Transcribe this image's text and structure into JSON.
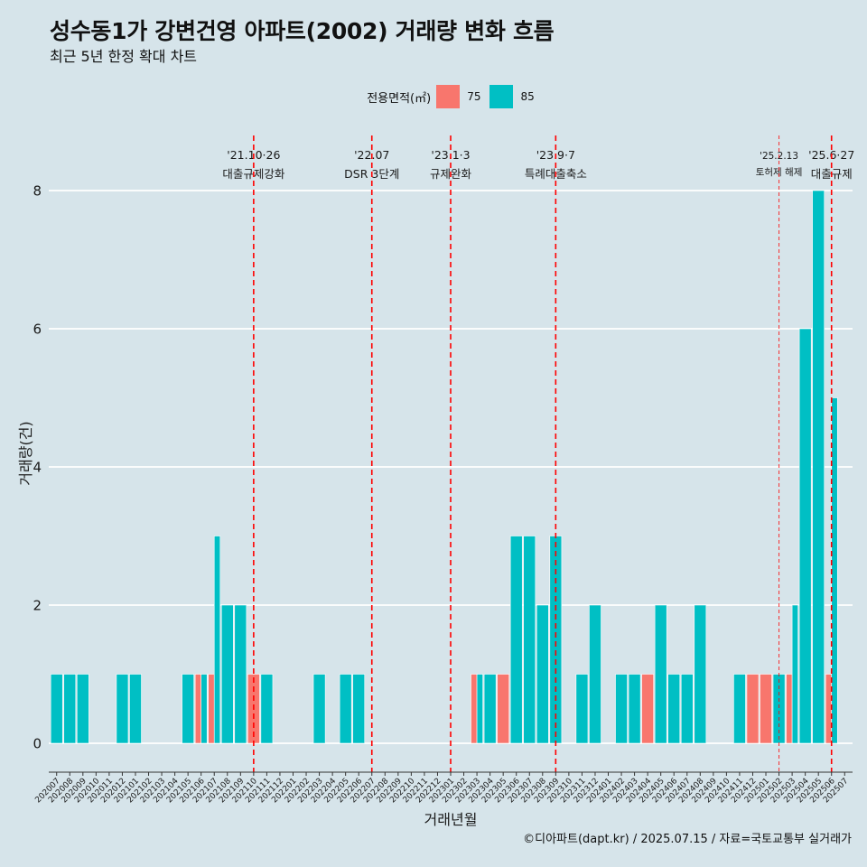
{
  "chart_data": {
    "type": "bar",
    "title": "성수동1가 강변건영 아파트(2002) 거래량 변화 흐름",
    "subtitle": "최근 5년 한정 확대 차트",
    "xlabel": "거래년월",
    "ylabel": "거래량(건)",
    "ylim": [
      0,
      8
    ],
    "y_ticks": [
      0,
      2,
      4,
      6,
      8
    ],
    "grid": {
      "horizontal": true,
      "vertical": false
    },
    "legend": {
      "title": "전용면적(㎡)",
      "position": "top"
    },
    "categories": [
      "202007",
      "202008",
      "202009",
      "202010",
      "202011",
      "202012",
      "202101",
      "202102",
      "202103",
      "202104",
      "202105",
      "202106",
      "202107",
      "202108",
      "202109",
      "202110",
      "202111",
      "202112",
      "202201",
      "202202",
      "202203",
      "202204",
      "202205",
      "202206",
      "202207",
      "202208",
      "202209",
      "202210",
      "202211",
      "202212",
      "202301",
      "202302",
      "202303",
      "202304",
      "202305",
      "202306",
      "202307",
      "202308",
      "202309",
      "202310",
      "202311",
      "202312",
      "202401",
      "202402",
      "202403",
      "202404",
      "202405",
      "202406",
      "202407",
      "202408",
      "202409",
      "202410",
      "202411",
      "202412",
      "202501",
      "202502",
      "202503",
      "202504",
      "202505",
      "202506",
      "202507"
    ],
    "series": [
      {
        "name": "75",
        "color": "#F8766D",
        "values": [
          0,
          0,
          0,
          0,
          0,
          0,
          0,
          0,
          0,
          0,
          0,
          1,
          1,
          0,
          0,
          1,
          0,
          0,
          0,
          0,
          0,
          0,
          0,
          0,
          0,
          0,
          0,
          0,
          0,
          0,
          0,
          0,
          1,
          0,
          1,
          0,
          0,
          0,
          0,
          0,
          0,
          0,
          0,
          0,
          0,
          1,
          0,
          0,
          0,
          0,
          0,
          0,
          0,
          1,
          1,
          0,
          1,
          0,
          0,
          1,
          0
        ]
      },
      {
        "name": "85",
        "color": "#00BFC4",
        "values": [
          1,
          1,
          1,
          0,
          0,
          1,
          1,
          0,
          0,
          0,
          1,
          1,
          3,
          2,
          2,
          0,
          1,
          0,
          0,
          0,
          1,
          0,
          1,
          1,
          0,
          0,
          0,
          0,
          0,
          0,
          0,
          0,
          1,
          1,
          0,
          3,
          3,
          2,
          3,
          0,
          1,
          2,
          0,
          1,
          1,
          0,
          2,
          1,
          1,
          2,
          0,
          0,
          1,
          0,
          0,
          1,
          2,
          6,
          8,
          5,
          0
        ]
      }
    ],
    "annotations": [
      {
        "x": "202110",
        "date": "'21.10·26",
        "label": "대출규제강화",
        "minor": false
      },
      {
        "x": "202207",
        "date": "'22.07",
        "label": "DSR 3단계",
        "minor": false
      },
      {
        "x": "202301",
        "date": "'23.1·3",
        "label": "규제완화",
        "minor": false
      },
      {
        "x": "202309",
        "date": "'23.9·7",
        "label": "특례대출축소",
        "minor": false
      },
      {
        "x": "202502",
        "date": "'25.2.13",
        "label": "토허제 해제",
        "minor": true
      },
      {
        "x": "202506",
        "date": "'25.6·27",
        "label": "대출규제",
        "minor": false
      }
    ],
    "caption": "©디아파트(dapt.kr) / 2025.07.15 / 자료=국토교통부 실거래가"
  },
  "colors": {
    "background": "#d6e4ea",
    "grid": "#ffffff",
    "annotation": "#ff0000",
    "axis": "#333333"
  }
}
